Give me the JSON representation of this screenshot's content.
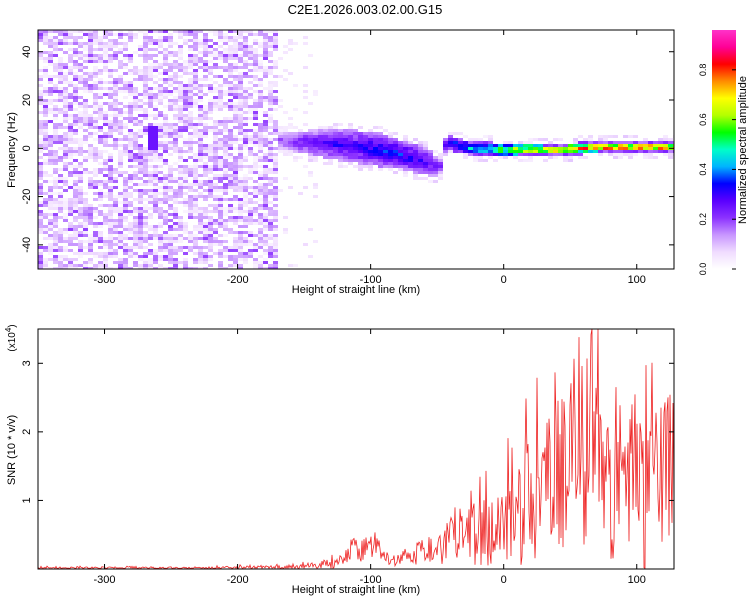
{
  "title": "C2E1.2026.003.02.00.G15",
  "top_plot": {
    "xlabel": "Height of straight line (km)",
    "ylabel": "Frequency (Hz)"
  },
  "colorbar": {
    "label": "Normalized spectral amplitude"
  },
  "bottom_plot": {
    "xlabel": "Height of straight line (km)",
    "ylabel": "SNR (10 * v/v)",
    "scale_label": "(x10",
    "scale_exponent": "4",
    "scale_close": ")"
  },
  "chart_data": [
    {
      "type": "heatmap",
      "title": "C2E1.2026.003.02.00.G15",
      "xlabel": "Height of straight line (km)",
      "ylabel": "Frequency (Hz)",
      "xlim": [
        -350,
        128
      ],
      "ylim": [
        -50,
        49
      ],
      "xticks": [
        -300,
        -200,
        -100,
        0,
        100
      ],
      "yticks": [
        -40,
        -20,
        0,
        20,
        40
      ],
      "x_tick_labels": [
        "-300",
        "-200",
        "-100",
        "0",
        "100"
      ],
      "y_tick_labels": [
        "-40",
        "-20",
        "0",
        "20",
        "40"
      ],
      "colorbar": {
        "label": "Normalized spectral amplitude",
        "range": [
          0,
          0.96
        ],
        "ticks": [
          0.0,
          0.2,
          0.4,
          0.6,
          0.8
        ],
        "tick_labels": [
          "0.0",
          "0.2",
          "0.4",
          "0.6",
          "0.8"
        ],
        "colors": [
          "#ffffff",
          "#f0dcff",
          "#c896ff",
          "#8c32ff",
          "#5a00ff",
          "#0000ff",
          "#00b4ff",
          "#00ffc8",
          "#00ff00",
          "#b4ff00",
          "#ffff00",
          "#ff8c00",
          "#ff0000",
          "#ff0096",
          "#ff32c8"
        ]
      },
      "noise_region": {
        "x_range": [
          -350,
          -170
        ],
        "typical_amplitude": 0.1,
        "frequency_spread_hz": 49
      },
      "transition_point_km": -170,
      "signal_band": {
        "height_km": [
          -175,
          -150,
          -130,
          -110,
          -95,
          -80,
          -65,
          -55,
          -50,
          -45,
          -30,
          -10,
          10,
          40,
          70,
          100,
          128
        ],
        "center_frequency_hz": [
          4,
          3,
          2,
          1,
          0,
          -2,
          -4,
          -6,
          -8,
          3,
          1,
          0,
          0,
          0,
          1,
          1,
          1
        ],
        "half_width_hz": [
          3,
          5,
          6,
          7,
          7,
          6,
          6,
          5,
          3,
          3,
          3,
          3,
          3,
          2.5,
          2.5,
          2.5,
          2.5
        ],
        "peak_amplitude": [
          0.2,
          0.3,
          0.35,
          0.35,
          0.4,
          0.4,
          0.35,
          0.3,
          0.25,
          0.4,
          0.5,
          0.6,
          0.75,
          0.85,
          0.9,
          0.9,
          0.9
        ]
      },
      "isolated_feature": {
        "x": -265,
        "y": 5,
        "amplitude": 0.25
      }
    },
    {
      "type": "line",
      "xlabel": "Height of straight line (km)",
      "ylabel": "SNR (10 * v/v)",
      "y_multiplier": "x10^4",
      "xlim": [
        -350,
        128
      ],
      "ylim": [
        0,
        3.5
      ],
      "xticks": [
        -300,
        -200,
        -100,
        0,
        100
      ],
      "yticks": [
        1,
        2,
        3
      ],
      "x_tick_labels": [
        "-300",
        "-200",
        "-100",
        "0",
        "100"
      ],
      "y_tick_labels": [
        "1",
        "2",
        "3"
      ],
      "color": "#ee2222",
      "x": [
        -350,
        -250,
        -170,
        -150,
        -130,
        -110,
        -100,
        -90,
        -80,
        -70,
        -60,
        -55,
        -50,
        -40,
        -30,
        -20,
        -10,
        0,
        10,
        20,
        30,
        40,
        50,
        60,
        70,
        80,
        90,
        100,
        110,
        120,
        128
      ],
      "y": [
        0.03,
        0.03,
        0.05,
        0.08,
        0.15,
        0.4,
        0.5,
        0.3,
        0.2,
        0.3,
        0.45,
        0.35,
        0.4,
        0.7,
        0.9,
        1.0,
        1.1,
        1.3,
        1.6,
        2.0,
        2.2,
        2.6,
        2.4,
        2.7,
        3.4,
        2.5,
        2.5,
        2.4,
        2.2,
        2.5,
        2.6
      ],
      "peak_noise_amplitude": [
        0.02,
        0.02,
        0.04,
        0.05,
        0.1,
        0.2,
        0.2,
        0.15,
        0.1,
        0.15,
        0.25,
        0.2,
        0.2,
        0.4,
        0.5,
        0.6,
        0.7,
        0.8,
        1.0,
        1.2,
        1.3,
        1.4,
        1.4,
        1.5,
        1.6,
        1.5,
        1.5,
        1.5,
        1.5,
        1.4,
        1.4
      ]
    }
  ]
}
